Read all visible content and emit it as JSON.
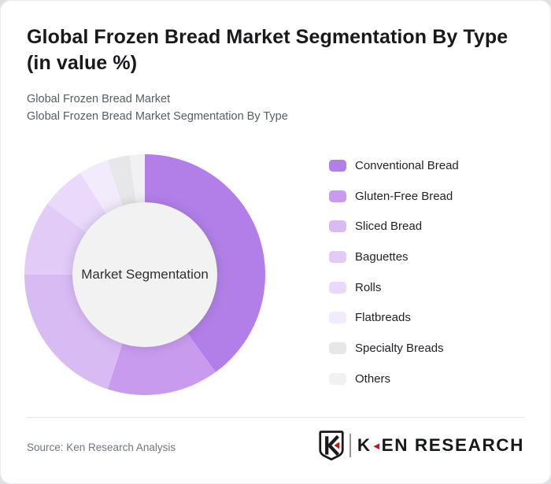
{
  "page": {
    "title": "Global Frozen Bread Market Segmentation By Type (in value %)",
    "subtitle_lines": [
      "Global Frozen Bread Market",
      "Global Frozen Bread Market Segmentation By Type"
    ]
  },
  "chart_data": {
    "type": "pie",
    "variant": "donut",
    "title": "Global Frozen Bread Market Segmentation By Type (in value %)",
    "unit": "value %",
    "center_label": "Market Segmentation",
    "start_angle_deg": 0,
    "direction": "clockwise",
    "legend_position": "right",
    "data_labels_shown": false,
    "inner_radius_ratio": 0.6,
    "categories": [
      "Conventional Bread",
      "Gluten-Free Bread",
      "Sliced Bread",
      "Baguettes",
      "Rolls",
      "Flatbreads",
      "Specialty Breads",
      "Others"
    ],
    "values": [
      40,
      15,
      20,
      10,
      6,
      4,
      3,
      2
    ],
    "values_note": "estimated from arc angles; no numeric labels shown in chart",
    "colors": [
      "#b27fe8",
      "#c89bee",
      "#d9bbf4",
      "#e2ccf7",
      "#ead9fa",
      "#f2ebfb",
      "#e7e7e9",
      "#f1f1f2"
    ],
    "inner_circle_color": "#f2f2f3"
  },
  "footer": {
    "source": "Source: Ken Research Analysis",
    "logo": {
      "emblem_letter": "K",
      "wordmark_k": "K",
      "accent_glyph": "◄",
      "wordmark_rest": "EN RESEARCH",
      "accent_color": "#c4161c"
    }
  },
  "theme": {
    "card_background": "#ffffff",
    "page_background": "#dfe0e2",
    "title_color": "#17191c",
    "subtitle_color": "#565d66",
    "accent": "#b27fe8"
  }
}
